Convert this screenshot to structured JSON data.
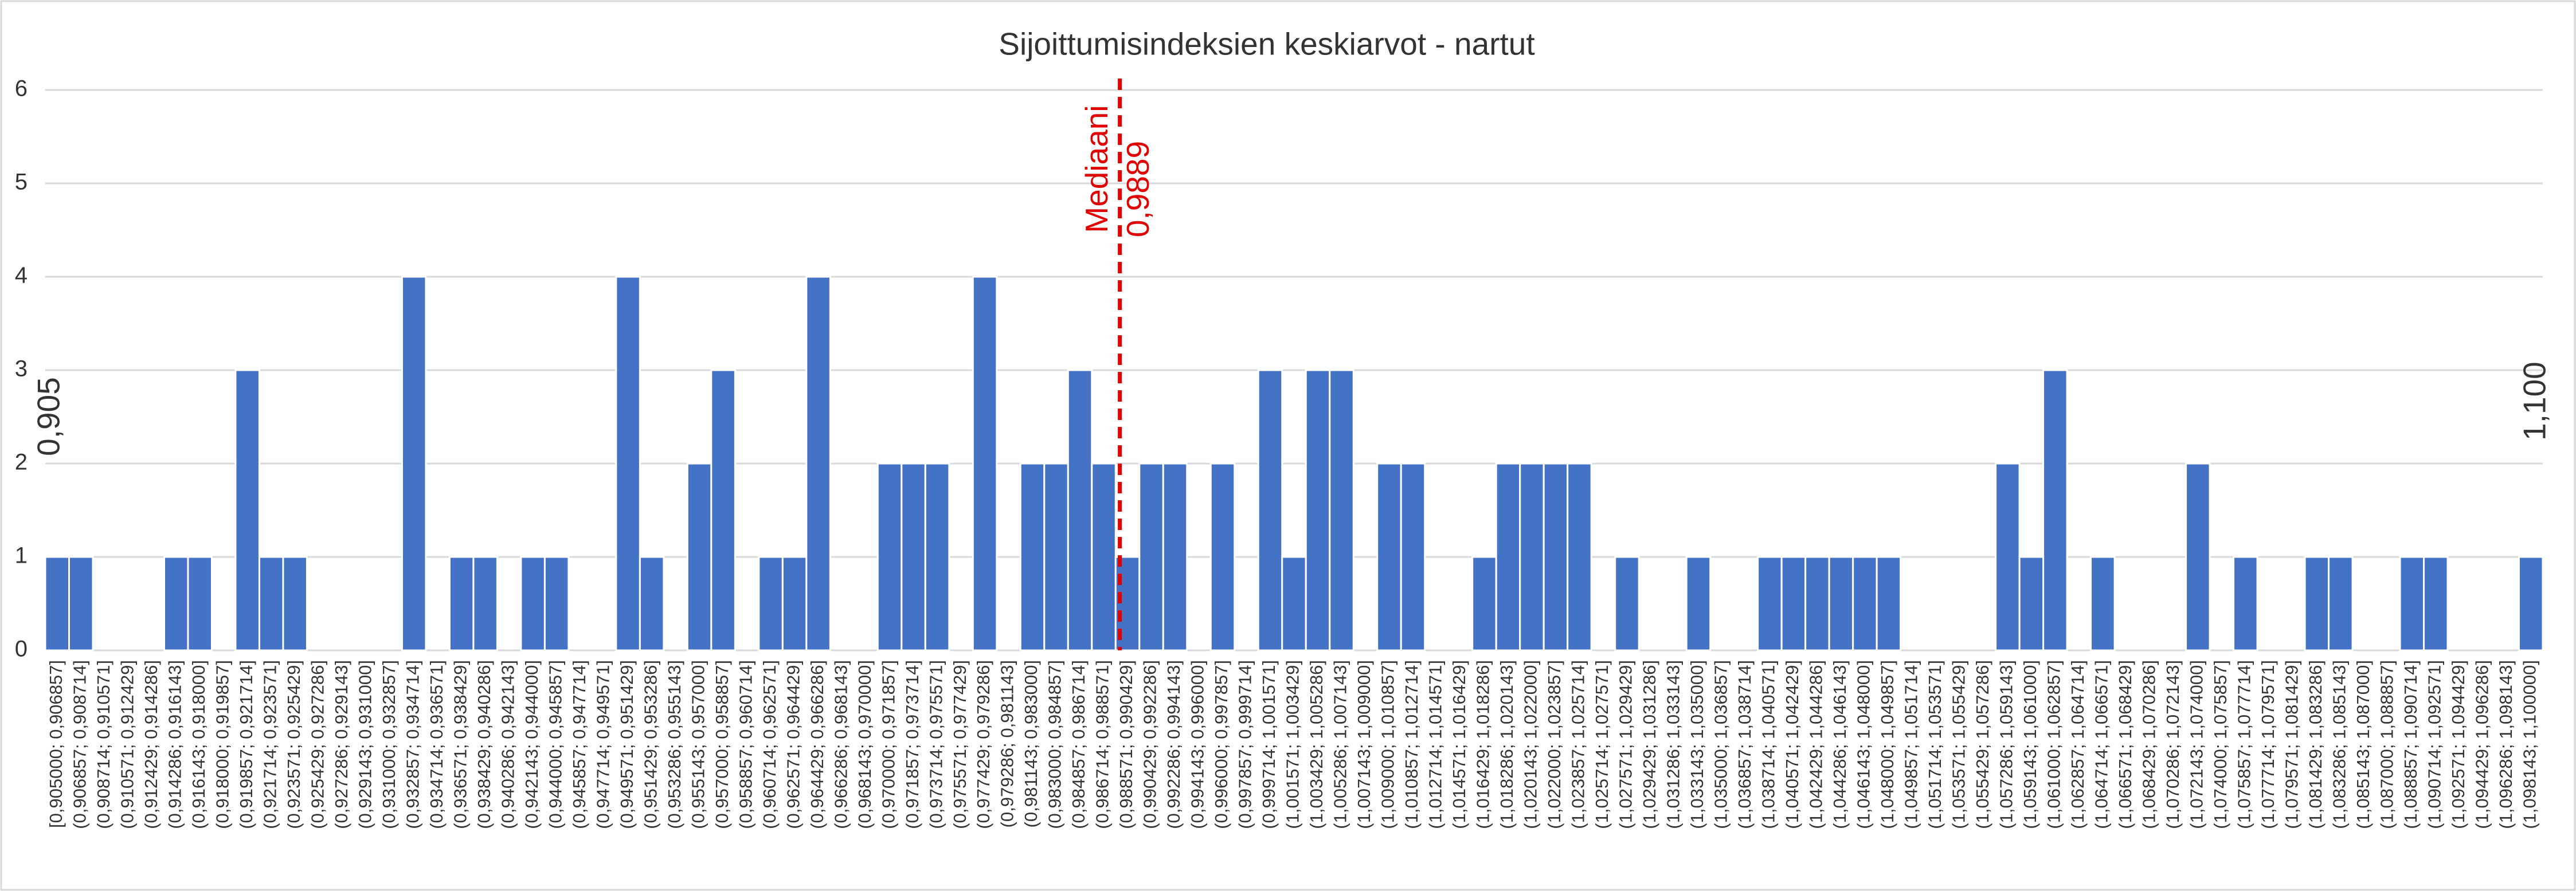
{
  "chart_data": {
    "type": "bar",
    "title": "Sijoittumisindeksien keskiarvot - nartut",
    "categories": [
      "[0,905000; 0,906857]",
      "(0,906857; 0,908714]",
      "(0,908714; 0,910571]",
      "(0,910571; 0,912429]",
      "(0,912429; 0,914286]",
      "(0,914286; 0,916143]",
      "(0,916143; 0,918000]",
      "(0,918000; 0,919857]",
      "(0,919857; 0,921714]",
      "(0,921714; 0,923571]",
      "(0,923571; 0,925429]",
      "(0,925429; 0,927286]",
      "(0,927286; 0,929143]",
      "(0,929143; 0,931000]",
      "(0,931000; 0,932857]",
      "(0,932857; 0,934714]",
      "(0,934714; 0,936571]",
      "(0,936571; 0,938429]",
      "(0,938429; 0,940286]",
      "(0,940286; 0,942143]",
      "(0,942143; 0,944000]",
      "(0,944000; 0,945857]",
      "(0,945857; 0,947714]",
      "(0,947714; 0,949571]",
      "(0,949571; 0,951429]",
      "(0,951429; 0,953286]",
      "(0,953286; 0,955143]",
      "(0,955143; 0,957000]",
      "(0,957000; 0,958857]",
      "(0,958857; 0,960714]",
      "(0,960714; 0,962571]",
      "(0,962571; 0,964429]",
      "(0,964429; 0,966286]",
      "(0,966286; 0,968143]",
      "(0,968143; 0,970000]",
      "(0,970000; 0,971857]",
      "(0,971857; 0,973714]",
      "(0,973714; 0,975571]",
      "(0,975571; 0,977429]",
      "(0,977429; 0,979286]",
      "(0,979286; 0,981143]",
      "(0,981143; 0,983000]",
      "(0,983000; 0,984857]",
      "(0,984857; 0,986714]",
      "(0,986714; 0,988571]",
      "(0,988571; 0,990429]",
      "(0,990429; 0,992286]",
      "(0,992286; 0,994143]",
      "(0,994143; 0,996000]",
      "(0,996000; 0,997857]",
      "(0,997857; 0,999714]",
      "(0,999714; 1,001571]",
      "(1,001571; 1,003429]",
      "(1,003429; 1,005286]",
      "(1,005286; 1,007143]",
      "(1,007143; 1,009000]",
      "(1,009000; 1,010857]",
      "(1,010857; 1,012714]",
      "(1,012714; 1,014571]",
      "(1,014571; 1,016429]",
      "(1,016429; 1,018286]",
      "(1,018286; 1,020143]",
      "(1,020143; 1,022000]",
      "(1,022000; 1,023857]",
      "(1,023857; 1,025714]",
      "(1,025714; 1,027571]",
      "(1,027571; 1,029429]",
      "(1,029429; 1,031286]",
      "(1,031286; 1,033143]",
      "(1,033143; 1,035000]",
      "(1,035000; 1,036857]",
      "(1,036857; 1,038714]",
      "(1,038714; 1,040571]",
      "(1,040571; 1,042429]",
      "(1,042429; 1,044286]",
      "(1,044286; 1,046143]",
      "(1,046143; 1,048000]",
      "(1,048000; 1,049857]",
      "(1,049857; 1,051714]",
      "(1,051714; 1,053571]",
      "(1,053571; 1,055429]",
      "(1,055429; 1,057286]",
      "(1,057286; 1,059143]",
      "(1,059143; 1,061000]",
      "(1,061000; 1,062857]",
      "(1,062857; 1,064714]",
      "(1,064714; 1,066571]",
      "(1,066571; 1,068429]",
      "(1,068429; 1,070286]",
      "(1,070286; 1,072143]",
      "(1,072143; 1,074000]",
      "(1,074000; 1,075857]",
      "(1,075857; 1,077714]",
      "(1,077714; 1,079571]",
      "(1,079571; 1,081429]",
      "(1,081429; 1,083286]",
      "(1,083286; 1,085143]",
      "(1,085143; 1,087000]",
      "(1,087000; 1,088857]",
      "(1,088857; 1,090714]",
      "(1,090714; 1,092571]",
      "(1,092571; 1,094429]",
      "(1,094429; 1,096286]",
      "(1,096286; 1,098143]",
      "(1,098143; 1,100000]"
    ],
    "values": [
      1,
      1,
      0,
      0,
      0,
      1,
      1,
      0,
      3,
      1,
      1,
      0,
      0,
      0,
      0,
      4,
      0,
      1,
      1,
      0,
      1,
      1,
      0,
      0,
      4,
      1,
      0,
      2,
      3,
      0,
      1,
      1,
      4,
      0,
      0,
      2,
      2,
      2,
      0,
      4,
      0,
      2,
      2,
      3,
      2,
      1,
      2,
      2,
      0,
      2,
      0,
      3,
      1,
      3,
      3,
      0,
      2,
      2,
      0,
      0,
      1,
      2,
      2,
      2,
      2,
      0,
      1,
      0,
      0,
      1,
      0,
      0,
      1,
      1,
      1,
      1,
      1,
      1,
      0,
      0,
      0,
      0,
      2,
      1,
      3,
      0,
      1,
      0,
      0,
      0,
      2,
      0,
      1,
      0,
      0,
      1,
      1,
      0,
      0,
      1,
      1,
      0,
      0,
      0,
      1
    ],
    "color": "#4472c4",
    "xlim": [
      {
        "value": 0.905,
        "label": "0,905"
      },
      {
        "value": 1.1,
        "label": "1,100"
      }
    ],
    "ylim": [
      0,
      6
    ],
    "yticks": [
      0,
      1,
      2,
      3,
      4,
      5,
      6
    ],
    "grid": true,
    "median": {
      "label": "Mediaani",
      "value": 0.9889,
      "value_label": "0,9889",
      "color": "#e00000"
    }
  }
}
